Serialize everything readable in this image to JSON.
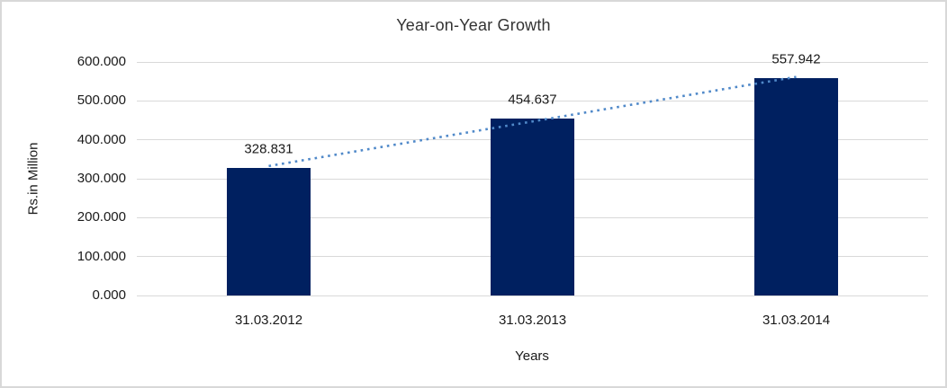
{
  "chart_data": {
    "type": "bar",
    "title": "Year-on-Year Growth",
    "xlabel": "Years",
    "ylabel": "Rs.in Million",
    "categories": [
      "31.03.2012",
      "31.03.2013",
      "31.03.2014"
    ],
    "values": [
      328.831,
      454.637,
      557.942
    ],
    "value_labels": [
      "328.831",
      "454.637",
      "557.942"
    ],
    "y_ticks": [
      {
        "value": 0,
        "label": "0.000"
      },
      {
        "value": 100,
        "label": "100.000"
      },
      {
        "value": 200,
        "label": "200.000"
      },
      {
        "value": 300,
        "label": "300.000"
      },
      {
        "value": 400,
        "label": "400.000"
      },
      {
        "value": 500,
        "label": "500.000"
      },
      {
        "value": 600,
        "label": "600.000"
      }
    ],
    "ylim": [
      0,
      600
    ],
    "grid": "horizontal",
    "legend": "none",
    "bar_color": "#002060",
    "gridline_color": "#d9d9d9",
    "frame_color": "#d8d8d8",
    "trendline": {
      "type": "linear",
      "style": "dotted",
      "color": "#5089c9"
    }
  }
}
